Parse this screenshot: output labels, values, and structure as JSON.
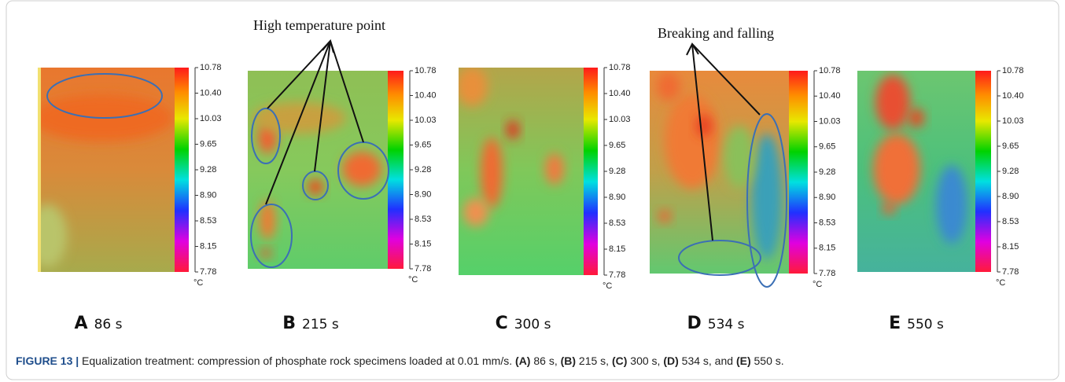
{
  "annotations": {
    "high_temp": "High temperature point",
    "breaking": "Breaking and falling"
  },
  "colorbar": {
    "ticks": [
      "10.78",
      "10.40",
      "10.03",
      "9.65",
      "9.28",
      "8.90",
      "8.53",
      "8.15",
      "7.78"
    ],
    "unit": "°C"
  },
  "panels": [
    {
      "letter": "A",
      "time": "86 s"
    },
    {
      "letter": "B",
      "time": "215 s"
    },
    {
      "letter": "C",
      "time": "300 s"
    },
    {
      "letter": "D",
      "time": "534 s"
    },
    {
      "letter": "E",
      "time": "550 s"
    }
  ],
  "caption": {
    "label": "FIGURE 13 |",
    "parts": [
      {
        "text": " Equalization treatment: compression of phosphate rock specimens loaded at 0.01 mm/s. ",
        "bold": false
      },
      {
        "text": "(A)",
        "bold": true
      },
      {
        "text": " 86 s, ",
        "bold": false
      },
      {
        "text": "(B)",
        "bold": true
      },
      {
        "text": " 215 s, ",
        "bold": false
      },
      {
        "text": "(C)",
        "bold": true
      },
      {
        "text": " 300 s, ",
        "bold": false
      },
      {
        "text": "(D)",
        "bold": true
      },
      {
        "text": " 534 s, and ",
        "bold": false
      },
      {
        "text": "(E)",
        "bold": true
      },
      {
        "text": " 550 s.",
        "bold": false
      }
    ]
  }
}
